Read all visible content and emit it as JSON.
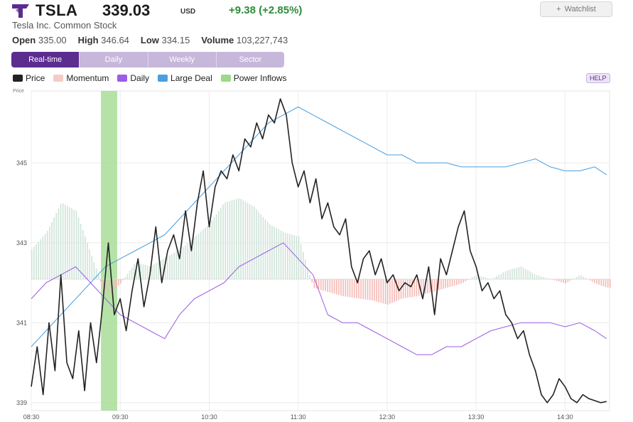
{
  "header": {
    "ticker": "TSLA",
    "price": "339.03",
    "currency": "USD",
    "change": "+9.38 (+2.85%)",
    "watchlist_label": "Watchlist",
    "company": "Tesla Inc. Common Stock"
  },
  "stats": [
    {
      "label": "Open",
      "value": "335.00"
    },
    {
      "label": "High",
      "value": "346.64"
    },
    {
      "label": "Low",
      "value": "334.15"
    },
    {
      "label": "Volume",
      "value": "103,227,743"
    }
  ],
  "tabs": [
    {
      "label": "Real-time",
      "active": true
    },
    {
      "label": "Daily",
      "active": false
    },
    {
      "label": "Weekly",
      "active": false
    },
    {
      "label": "Sector",
      "active": false
    }
  ],
  "help_label": "HELP",
  "colors": {
    "price": "#222222",
    "momentum_pos": "#cfe3d8",
    "momentum_neg": "#f4b9b4",
    "daily": "#9b5de5",
    "large_deal": "#4a9fe0",
    "power_inflows": "#9cd98a",
    "accent": "#5b2d8f",
    "up": "#2e8b3a"
  },
  "chart_data": {
    "type": "line",
    "ylabel": "Price",
    "y_ticks": [
      339,
      341,
      343,
      345
    ],
    "ylim": [
      338.8,
      346.8
    ],
    "x_ticks": [
      "08:30",
      "09:30",
      "10:30",
      "11:30",
      "12:30",
      "13:30",
      "14:30"
    ],
    "x_tick_minutes": [
      0,
      60,
      120,
      180,
      240,
      300,
      360
    ],
    "xlim_minutes": [
      0,
      390
    ],
    "grid": true,
    "legend_position": "top-left",
    "legend": [
      {
        "name": "Price",
        "color": "#222222"
      },
      {
        "name": "Momentum",
        "color": "#f4cbc6"
      },
      {
        "name": "Daily",
        "color": "#9b5de5"
      },
      {
        "name": "Large Deal",
        "color": "#4a9fe0"
      },
      {
        "name": "Power Inflows",
        "color": "#9cd98a"
      }
    ],
    "power_inflows_band_minutes": [
      47,
      58
    ],
    "series": [
      {
        "name": "Price",
        "x_minutes": [
          0,
          4,
          8,
          12,
          16,
          20,
          24,
          28,
          32,
          36,
          40,
          44,
          48,
          52,
          56,
          60,
          64,
          68,
          72,
          76,
          80,
          84,
          88,
          92,
          96,
          100,
          104,
          108,
          112,
          116,
          120,
          124,
          128,
          132,
          136,
          140,
          144,
          148,
          152,
          156,
          160,
          164,
          168,
          172,
          176,
          180,
          184,
          188,
          192,
          196,
          200,
          204,
          208,
          212,
          216,
          220,
          224,
          228,
          232,
          236,
          240,
          244,
          248,
          252,
          256,
          260,
          264,
          268,
          272,
          276,
          280,
          284,
          288,
          292,
          296,
          300,
          304,
          308,
          312,
          316,
          320,
          324,
          328,
          332,
          336,
          340,
          344,
          348,
          352,
          356,
          360,
          364,
          368,
          372,
          376,
          380,
          384,
          388
        ],
        "values": [
          339.4,
          340.4,
          339.2,
          341.0,
          339.8,
          342.2,
          340.0,
          339.6,
          340.8,
          339.3,
          341.0,
          340.0,
          341.4,
          343.0,
          341.2,
          341.6,
          340.8,
          341.8,
          342.6,
          341.4,
          342.2,
          343.4,
          342.0,
          342.8,
          343.2,
          342.6,
          343.8,
          342.8,
          344.0,
          344.8,
          343.4,
          344.4,
          344.8,
          344.6,
          345.2,
          344.8,
          345.6,
          345.4,
          346.0,
          345.6,
          346.2,
          346.0,
          346.6,
          346.2,
          345.0,
          344.4,
          344.8,
          344.0,
          344.6,
          343.6,
          344.0,
          343.4,
          343.2,
          343.6,
          342.4,
          342.0,
          342.6,
          342.8,
          342.2,
          342.6,
          342.0,
          342.2,
          341.8,
          342.0,
          341.9,
          342.2,
          341.6,
          342.4,
          341.2,
          342.6,
          342.2,
          342.8,
          343.4,
          343.8,
          342.8,
          342.4,
          341.8,
          342.0,
          341.6,
          341.8,
          341.2,
          341.0,
          340.6,
          340.8,
          340.2,
          339.8,
          339.2,
          339.0,
          339.2,
          339.6,
          339.4,
          339.1,
          339.0,
          339.2,
          339.1,
          339.05,
          339.0,
          339.03
        ]
      },
      {
        "name": "Large Deal",
        "x_minutes": [
          0,
          10,
          20,
          30,
          40,
          50,
          60,
          70,
          80,
          90,
          100,
          110,
          120,
          130,
          140,
          150,
          160,
          170,
          180,
          190,
          200,
          210,
          220,
          230,
          240,
          250,
          260,
          270,
          280,
          290,
          300,
          310,
          320,
          330,
          340,
          350,
          360,
          370,
          380,
          388
        ],
        "values": [
          340.4,
          340.8,
          341.2,
          341.6,
          342.0,
          342.4,
          342.6,
          342.8,
          343.0,
          343.2,
          343.6,
          344.0,
          344.4,
          344.8,
          345.2,
          345.6,
          346.0,
          346.2,
          346.4,
          346.2,
          346.0,
          345.8,
          345.6,
          345.4,
          345.2,
          345.2,
          345.0,
          345.0,
          345.0,
          344.9,
          344.9,
          344.9,
          344.9,
          345.0,
          345.1,
          344.9,
          344.8,
          344.8,
          344.9,
          344.7
        ]
      },
      {
        "name": "Daily",
        "x_minutes": [
          0,
          10,
          20,
          30,
          40,
          50,
          60,
          70,
          80,
          90,
          100,
          110,
          120,
          130,
          140,
          150,
          160,
          170,
          180,
          190,
          200,
          210,
          220,
          230,
          240,
          250,
          260,
          270,
          280,
          290,
          300,
          310,
          320,
          330,
          340,
          350,
          360,
          370,
          380,
          388
        ],
        "values": [
          341.6,
          342.0,
          342.2,
          342.4,
          342.0,
          341.6,
          341.2,
          341.0,
          340.8,
          340.6,
          341.2,
          341.6,
          341.8,
          342.0,
          342.4,
          342.6,
          342.8,
          343.0,
          342.6,
          342.2,
          341.2,
          341.0,
          341.0,
          340.8,
          340.6,
          340.4,
          340.2,
          340.2,
          340.4,
          340.4,
          340.6,
          340.8,
          340.9,
          341.0,
          341.0,
          341.0,
          340.9,
          341.0,
          340.8,
          340.6
        ]
      },
      {
        "name": "Momentum",
        "x_minutes": [
          0,
          10,
          20,
          30,
          40,
          50,
          60,
          70,
          80,
          90,
          100,
          110,
          120,
          130,
          140,
          150,
          160,
          170,
          180,
          190,
          200,
          210,
          220,
          230,
          240,
          250,
          260,
          270,
          280,
          290,
          300,
          310,
          320,
          330,
          340,
          350,
          360,
          370,
          380,
          388
        ],
        "values": [
          1.4,
          2.2,
          3.6,
          3.2,
          1.2,
          -0.8,
          -0.2,
          0.8,
          0.6,
          1.0,
          1.4,
          2.0,
          2.6,
          3.6,
          3.8,
          3.4,
          2.6,
          2.2,
          2.0,
          -0.4,
          -0.6,
          -0.8,
          -0.9,
          -1.0,
          -1.2,
          -0.9,
          -0.8,
          -0.6,
          -0.4,
          -0.2,
          0.2,
          0.0,
          0.4,
          0.6,
          0.2,
          0.0,
          -0.2,
          0.2,
          -0.2,
          -0.4
        ]
      }
    ]
  }
}
